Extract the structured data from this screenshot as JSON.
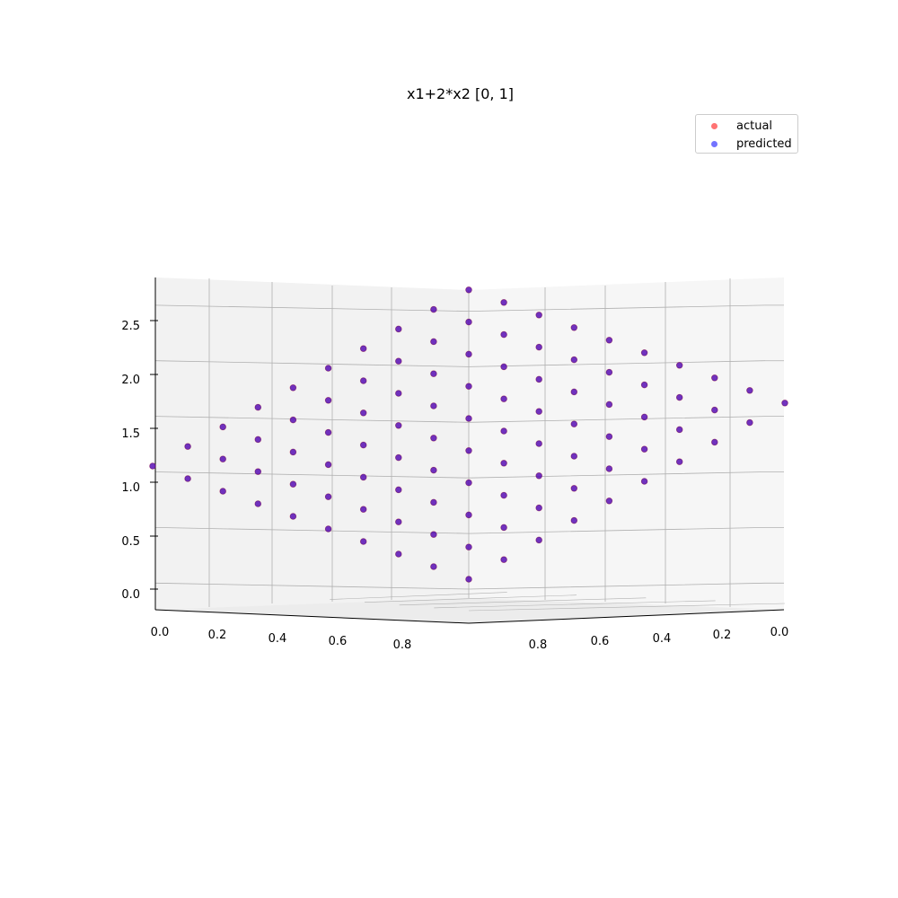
{
  "chart_data": {
    "type": "scatter",
    "plot3d": true,
    "title": "x1+2*x2 [0, 1]",
    "xlabel": "",
    "ylabel": "",
    "zlabel": "",
    "xlim": [
      0,
      0.9
    ],
    "ylim": [
      0,
      0.9
    ],
    "zlim": [
      0,
      2.7
    ],
    "x_ticks": [
      "0.0",
      "0.2",
      "0.4",
      "0.6",
      "0.8"
    ],
    "y_ticks": [
      "0.0",
      "0.2",
      "0.4",
      "0.6",
      "0.8"
    ],
    "z_ticks": [
      "0.0",
      "0.5",
      "1.0",
      "1.5",
      "2.0",
      "2.5"
    ],
    "grid": true,
    "legend_position": "top-right",
    "grid_values": [
      0,
      0.1,
      0.2,
      0.3,
      0.4,
      0.5,
      0.6,
      0.7,
      0.8,
      0.9
    ],
    "formula": "z = x1 + 2*x2",
    "series": [
      {
        "name": "actual",
        "color": "#ff0000",
        "opacity": 0.55
      },
      {
        "name": "predicted",
        "color": "#0000ff",
        "opacity": 0.55
      }
    ]
  }
}
